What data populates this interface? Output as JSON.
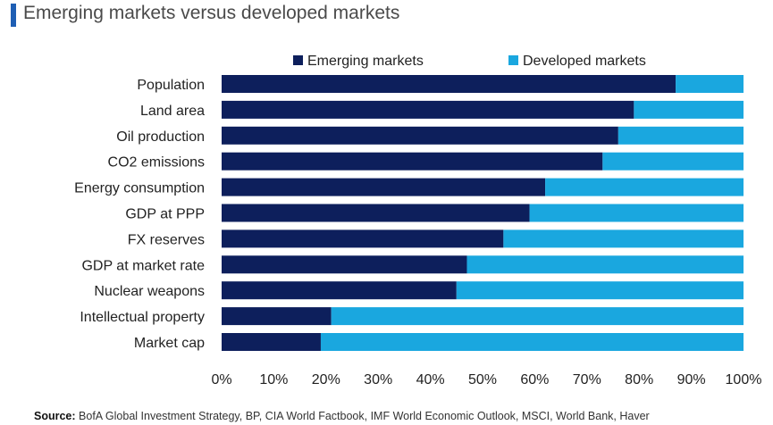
{
  "chart_data": {
    "type": "bar",
    "orientation": "horizontal",
    "stacked": true,
    "title": "Emerging markets versus developed markets",
    "categories": [
      "Population",
      "Land area",
      "Oil production",
      "CO2 emissions",
      "Energy consumption",
      "GDP at PPP",
      "FX reserves",
      "GDP at market rate",
      "Nuclear weapons",
      "Intellectual property",
      "Market cap"
    ],
    "series": [
      {
        "name": "Emerging markets",
        "color": "#0d1f5c",
        "values": [
          87,
          79,
          76,
          73,
          62,
          59,
          54,
          47,
          45,
          21,
          19
        ]
      },
      {
        "name": "Developed markets",
        "color": "#1aa7df",
        "values": [
          13,
          21,
          24,
          27,
          38,
          41,
          46,
          53,
          55,
          79,
          81
        ]
      }
    ],
    "xlim": [
      0,
      100
    ],
    "xticks": [
      "0%",
      "10%",
      "20%",
      "30%",
      "40%",
      "50%",
      "60%",
      "70%",
      "80%",
      "90%",
      "100%"
    ],
    "legend_position": "top-right",
    "grid": false
  },
  "source": {
    "label": "Source:",
    "text": "BofA Global Investment Strategy, BP, CIA World Factbook, IMF World Economic Outlook, MSCI, World Bank, Haver"
  }
}
